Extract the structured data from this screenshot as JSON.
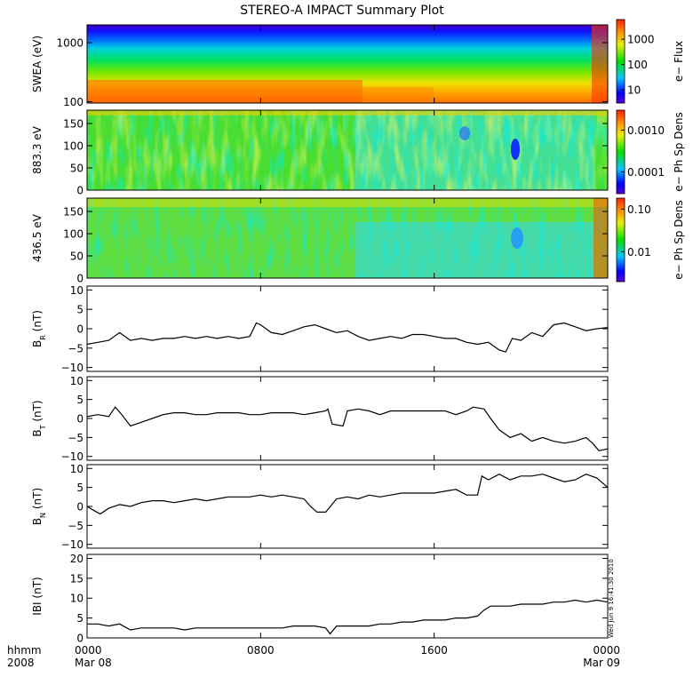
{
  "title": "STEREO-A IMPACT Summary Plot",
  "stamp": "Wed Jun  9 16:41:30 2010",
  "x_axis": {
    "ticks": [
      {
        "t": 0,
        "line1": "0000",
        "line2": "Mar 08"
      },
      {
        "t": 8,
        "line1": "0800",
        "line2": ""
      },
      {
        "t": 16,
        "line1": "1600",
        "line2": ""
      },
      {
        "t": 24,
        "line1": "0000",
        "line2": "Mar 09"
      }
    ],
    "left_label1": "hhmm",
    "left_label2": "2008",
    "range_hours": [
      0,
      24
    ]
  },
  "colors": {
    "line": "#000000",
    "frame": "#000000"
  },
  "chart_data": [
    {
      "type": "heatmap",
      "ylabel": "SWEA (eV)",
      "yscale": "log",
      "ylim": [
        95,
        2000
      ],
      "yticks": [
        {
          "v": 100,
          "label": "100"
        },
        {
          "v": 1000,
          "label": "1000"
        }
      ],
      "colorbar": {
        "label": "e− Flux",
        "scale": "log",
        "lim": [
          3,
          6000
        ],
        "ticks": [
          {
            "v": 10,
            "label": "10"
          },
          {
            "v": 100,
            "label": "100"
          },
          {
            "v": 1000,
            "label": "1000"
          }
        ]
      }
    },
    {
      "type": "heatmap",
      "ylabel": "883.3 eV",
      "ylim": [
        0,
        180
      ],
      "yticks": [
        {
          "v": 0,
          "label": "0"
        },
        {
          "v": 50,
          "label": "50"
        },
        {
          "v": 100,
          "label": "100"
        },
        {
          "v": 150,
          "label": "150"
        }
      ],
      "colorbar": {
        "label": "e− Ph Sp Dens",
        "scale": "log",
        "lim": [
          3e-05,
          0.003
        ],
        "ticks": [
          {
            "v": 0.0001,
            "label": "0.0001"
          },
          {
            "v": 0.001,
            "label": "0.0010"
          }
        ]
      }
    },
    {
      "type": "heatmap",
      "ylabel": "436.5 eV",
      "ylim": [
        0,
        180
      ],
      "yticks": [
        {
          "v": 0,
          "label": "0"
        },
        {
          "v": 50,
          "label": "50"
        },
        {
          "v": 100,
          "label": "100"
        },
        {
          "v": 150,
          "label": "150"
        }
      ],
      "colorbar": {
        "label": "e− Ph Sp Dens",
        "scale": "log",
        "lim": [
          0.002,
          0.18
        ],
        "ticks": [
          {
            "v": 0.01,
            "label": "0.01"
          },
          {
            "v": 0.1,
            "label": "0.10"
          }
        ]
      }
    },
    {
      "type": "line",
      "ylabel": "B",
      "ylabel_sub": "R",
      "ylabel_unit": " (nT)",
      "ylim": [
        -11,
        11
      ],
      "yticks": [
        {
          "v": -10,
          "label": "−10"
        },
        {
          "v": -5,
          "label": "−5"
        },
        {
          "v": 0,
          "label": "0"
        },
        {
          "v": 5,
          "label": "5"
        },
        {
          "v": 10,
          "label": "10"
        }
      ],
      "x": [
        0,
        0.5,
        1,
        1.5,
        2,
        2.5,
        3,
        3.5,
        4,
        4.5,
        5,
        5.5,
        6,
        6.5,
        7,
        7.5,
        7.8,
        8,
        8.5,
        9,
        9.5,
        10,
        10.5,
        11,
        11.5,
        12,
        12.5,
        13,
        13.5,
        14,
        14.5,
        15,
        15.5,
        16,
        16.5,
        17,
        17.5,
        18,
        18.5,
        19,
        19.3,
        19.6,
        20,
        20.5,
        21,
        21.5,
        22,
        22.5,
        23,
        23.5,
        24
      ],
      "y": [
        -4,
        -3.5,
        -3,
        -1,
        -3,
        -2.5,
        -3,
        -2.5,
        -2.5,
        -2,
        -2.5,
        -2,
        -2.5,
        -2,
        -2.5,
        -2,
        1.5,
        1,
        -1,
        -1.5,
        -0.5,
        0.5,
        1,
        0,
        -1,
        -0.5,
        -2,
        -3,
        -2.5,
        -2,
        -2.5,
        -1.5,
        -1.5,
        -2,
        -2.5,
        -2.5,
        -3.5,
        -4,
        -3.5,
        -5.5,
        -6,
        -2.5,
        -3,
        -1,
        -2,
        1,
        1.5,
        0.5,
        -0.5,
        0,
        0.3
      ]
    },
    {
      "type": "line",
      "ylabel": "B",
      "ylabel_sub": "T",
      "ylabel_unit": " (nT)",
      "ylim": [
        -11,
        11
      ],
      "yticks": [
        {
          "v": -10,
          "label": "−10"
        },
        {
          "v": -5,
          "label": "−5"
        },
        {
          "v": 0,
          "label": "0"
        },
        {
          "v": 5,
          "label": "5"
        },
        {
          "v": 10,
          "label": "10"
        }
      ],
      "x": [
        0,
        0.5,
        1,
        1.3,
        1.6,
        2,
        2.5,
        3,
        3.5,
        4,
        4.5,
        5,
        5.5,
        6,
        6.5,
        7,
        7.5,
        8,
        8.5,
        9,
        9.5,
        10,
        10.5,
        11,
        11.1,
        11.3,
        11.8,
        12,
        12.5,
        13,
        13.5,
        14,
        14.5,
        15,
        15.5,
        16,
        16.5,
        17,
        17.5,
        17.8,
        18.3,
        18.6,
        19,
        19.5,
        20,
        20.5,
        21,
        21.5,
        22,
        22.5,
        23,
        23.3,
        23.6,
        24
      ],
      "y": [
        0.5,
        1,
        0.5,
        3,
        1,
        -2,
        -1,
        0,
        1,
        1.5,
        1.5,
        1,
        1,
        1.5,
        1.5,
        1.5,
        1,
        1,
        1.5,
        1.5,
        1.5,
        1,
        1.5,
        2,
        2.5,
        -1.5,
        -2,
        2,
        2.5,
        2,
        1,
        2,
        2,
        2,
        2,
        2,
        2,
        1,
        2,
        3,
        2.5,
        0,
        -3,
        -5,
        -4,
        -6,
        -5,
        -6,
        -6.5,
        -6,
        -5,
        -6.5,
        -8.5,
        -8
      ]
    },
    {
      "type": "line",
      "ylabel": "B",
      "ylabel_sub": "N",
      "ylabel_unit": " (nT)",
      "ylim": [
        -11,
        11
      ],
      "yticks": [
        {
          "v": -10,
          "label": "−10"
        },
        {
          "v": -5,
          "label": "−5"
        },
        {
          "v": 0,
          "label": "0"
        },
        {
          "v": 5,
          "label": "5"
        },
        {
          "v": 10,
          "label": "10"
        }
      ],
      "x": [
        0,
        0.3,
        0.6,
        1,
        1.5,
        2,
        2.5,
        3,
        3.5,
        4,
        4.5,
        5,
        5.5,
        6,
        6.5,
        7,
        7.5,
        8,
        8.5,
        9,
        9.5,
        10,
        10.3,
        10.6,
        11,
        11.5,
        12,
        12.5,
        13,
        13.5,
        14,
        14.5,
        15,
        15.5,
        16,
        16.5,
        17,
        17.5,
        18,
        18.2,
        18.5,
        19,
        19.5,
        20,
        20.5,
        21,
        21.5,
        22,
        22.5,
        23,
        23.5,
        24
      ],
      "y": [
        0,
        -1,
        -2,
        -0.5,
        0.5,
        0,
        1,
        1.5,
        1.5,
        1,
        1.5,
        2,
        1.5,
        2,
        2.5,
        2.5,
        2.5,
        3,
        2.5,
        3,
        2.5,
        2,
        0,
        -1.5,
        -1.5,
        2,
        2.5,
        2,
        3,
        2.5,
        3,
        3.5,
        3.5,
        3.5,
        3.5,
        4,
        4.5,
        3,
        3,
        8,
        7,
        8.5,
        7,
        8,
        8,
        8.5,
        7.5,
        6.5,
        7,
        8.5,
        7.5,
        5
      ]
    },
    {
      "type": "line",
      "ylabel": "IBI",
      "ylabel_unit": " (nT)",
      "ylim": [
        0,
        21
      ],
      "yticks": [
        {
          "v": 0,
          "label": "0"
        },
        {
          "v": 5,
          "label": "5"
        },
        {
          "v": 10,
          "label": "10"
        },
        {
          "v": 15,
          "label": "15"
        },
        {
          "v": 20,
          "label": "20"
        }
      ],
      "x": [
        0,
        0.5,
        1,
        1.5,
        2,
        2.5,
        3,
        3.5,
        4,
        4.5,
        5,
        5.5,
        6,
        6.5,
        7,
        7.5,
        8,
        8.5,
        9,
        9.5,
        10,
        10.5,
        11,
        11.2,
        11.5,
        12,
        12.5,
        13,
        13.5,
        14,
        14.5,
        15,
        15.5,
        16,
        16.5,
        17,
        17.5,
        18,
        18.3,
        18.6,
        19,
        19.5,
        20,
        20.5,
        21,
        21.5,
        22,
        22.5,
        23,
        23.5,
        24
      ],
      "y": [
        3.5,
        3.5,
        3,
        3.5,
        2,
        2.5,
        2.5,
        2.5,
        2.5,
        2,
        2.5,
        2.5,
        2.5,
        2.5,
        2.5,
        2.5,
        2.5,
        2.5,
        2.5,
        3,
        3,
        3,
        2.5,
        1,
        3,
        3,
        3,
        3,
        3.5,
        3.5,
        4,
        4,
        4.5,
        4.5,
        4.5,
        5,
        5,
        5.5,
        7,
        8,
        8,
        8,
        8.5,
        8.5,
        8.5,
        9,
        9,
        9.5,
        9,
        9.5,
        9
      ]
    }
  ]
}
